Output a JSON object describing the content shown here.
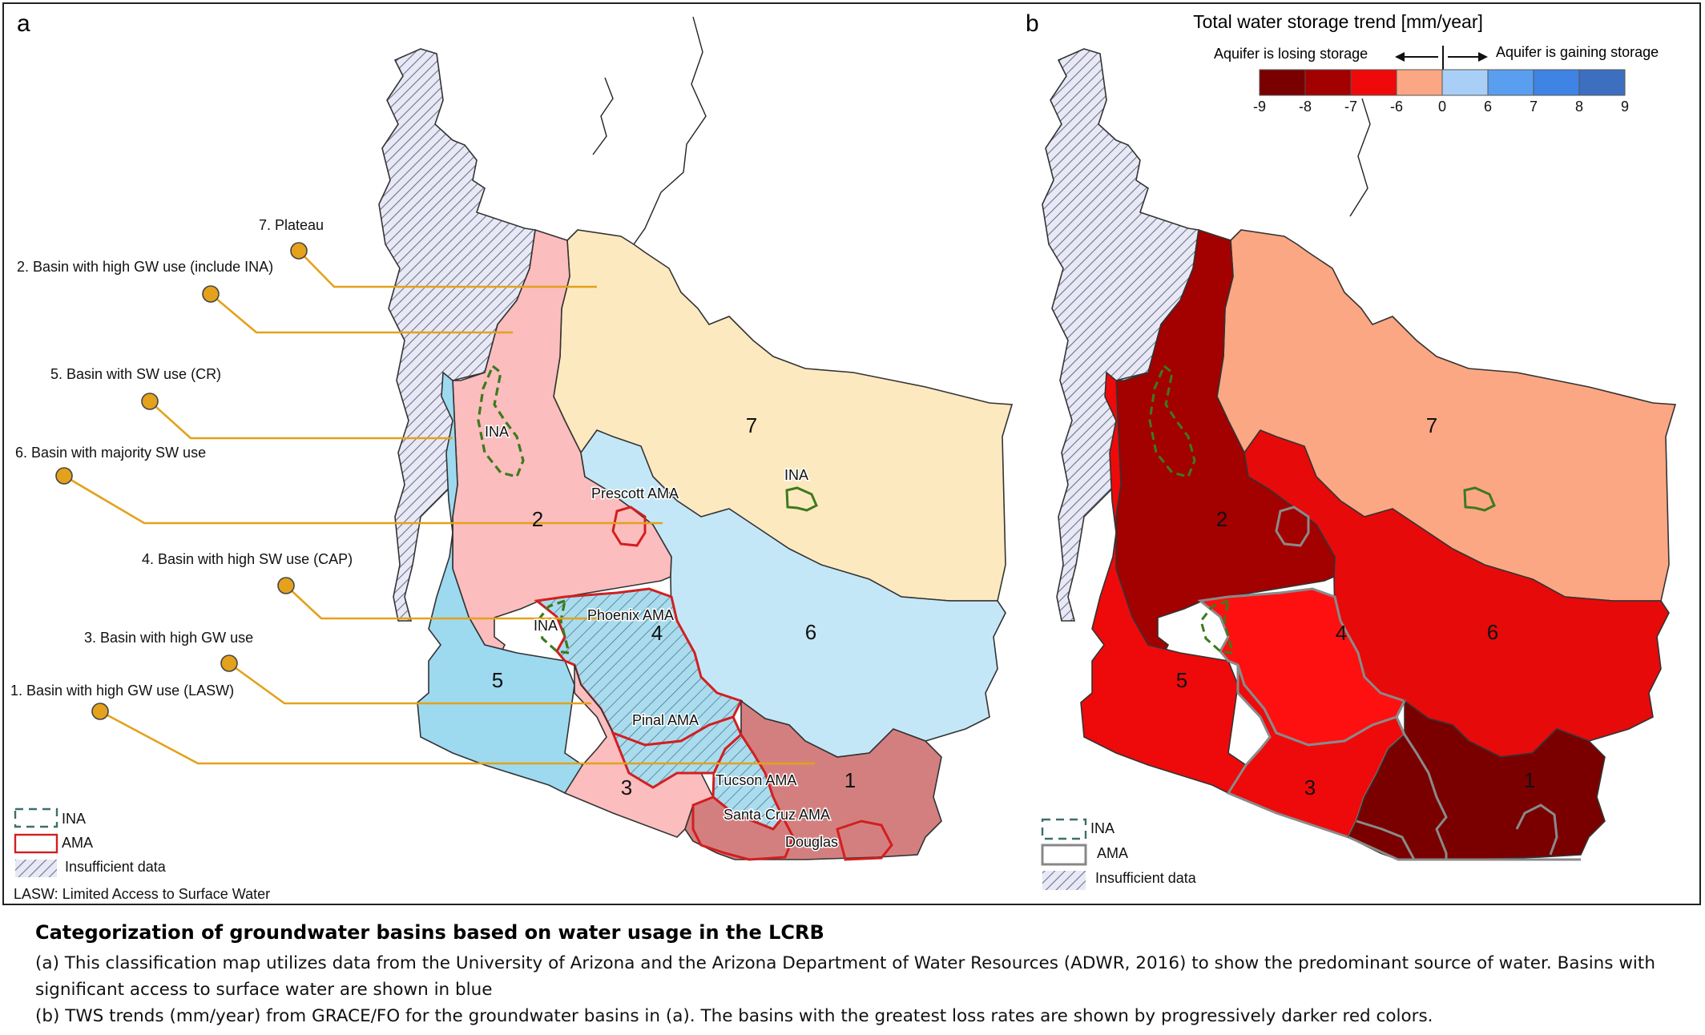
{
  "caption": {
    "title": "Categorization of groundwater basins based on water usage in the LCRB",
    "line_a": "(a) This classification map utilizes data from the University of Arizona and the Arizona Department of Water Resources (ADWR, 2016) to show the predominant source of water. Basins with significant access to surface water are shown in blue",
    "line_b": "(b) TWS trends (mm/year) from GRACE/FO for the groundwater basins in (a). The basins with the greatest loss rates are shown by progressively darker red colors."
  },
  "panel_a": {
    "letter": "a",
    "categories": [
      {
        "label": "7. Plateau",
        "color": "#fde9c0"
      },
      {
        "label": "2. Basin with high GW use (include INA)",
        "color": "#fbbdbe"
      },
      {
        "label": "5. Basin with SW use (CR)",
        "color": "#9ddaf0"
      },
      {
        "label": "6. Basin with majority SW use",
        "color": "#c4e7f8"
      },
      {
        "label": "4. Basin with high SW use (CAP)",
        "color": "#aadcee"
      },
      {
        "label": "3. Basin with high GW use",
        "color": "#fbbdbe"
      },
      {
        "label": "1. Basin with high GW use (LASW)",
        "color": "#d47f7f"
      }
    ],
    "region_numbers": {
      "r7": "7",
      "r2": "2",
      "r6": "6",
      "r4": "4",
      "r5": "5",
      "r3": "3",
      "r1": "1"
    },
    "place_labels": {
      "ina_north": "INA",
      "ina_east": "INA",
      "ina_west": "INA",
      "prescott": "Prescott AMA",
      "phoenix": "Phoenix AMA",
      "pinal": "Pinal AMA",
      "tucson": "Tucson AMA",
      "santa_cruz": "Santa Cruz AMA",
      "douglas": "Douglas"
    },
    "legend": {
      "ina": "INA",
      "ama": "AMA",
      "insufficient": "Insufficient data",
      "lasw_note": "LASW: Limited Access to Surface Water"
    },
    "colors": {
      "ina_outline": "#3d7a1e",
      "ama_outline": "#d21f1f",
      "leader": "#e4a11b"
    }
  },
  "panel_b": {
    "letter": "b",
    "colorbar": {
      "title": "Total water storage trend [mm/year]",
      "losing": "Aquifer is losing storage",
      "gaining": "Aquifer is gaining storage",
      "ticks": [
        "-9",
        "-8",
        "-7",
        "-6",
        "0",
        "6",
        "7",
        "8",
        "9"
      ],
      "bins": [
        {
          "from": -9,
          "to": -8,
          "color": "#7a0000"
        },
        {
          "from": -8,
          "to": -7,
          "color": "#a30000"
        },
        {
          "from": -7,
          "to": -6,
          "color": "#ee0a0a"
        },
        {
          "from": -6,
          "to": 0,
          "color": "#fca783"
        },
        {
          "from": 0,
          "to": 6,
          "color": "#a9cff6"
        },
        {
          "from": 6,
          "to": 7,
          "color": "#5a9ef0"
        },
        {
          "from": 7,
          "to": 8,
          "color": "#3f84e4"
        },
        {
          "from": 8,
          "to": 9,
          "color": "#3d6fc1"
        }
      ]
    },
    "region_numbers": {
      "r7": "7",
      "r2": "2",
      "r6": "6",
      "r4": "4",
      "r5": "5",
      "r3": "3",
      "r1": "1"
    },
    "legend": {
      "ina": "INA",
      "ama": "AMA",
      "insufficient": "Insufficient data"
    }
  }
}
